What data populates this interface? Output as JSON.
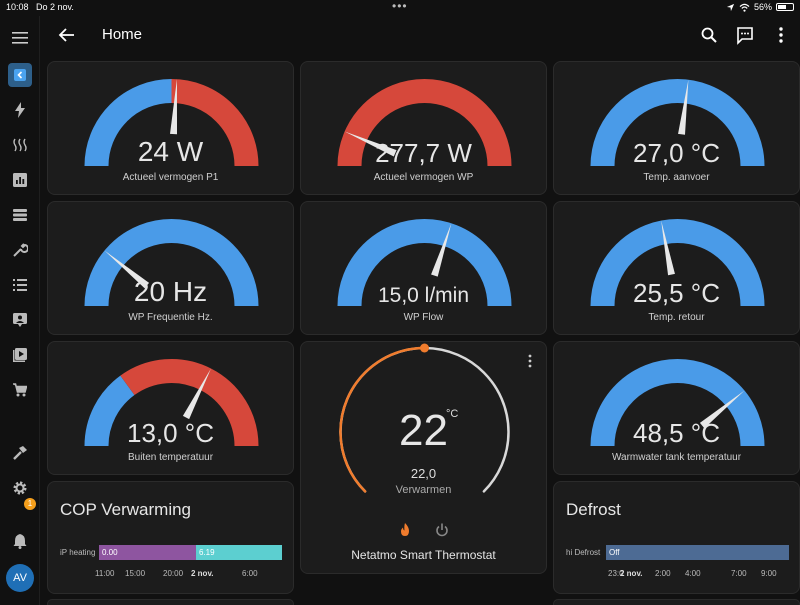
{
  "status": {
    "time": "10:08",
    "date": "Do 2 nov.",
    "battery": "56%"
  },
  "header": {
    "title": "Home"
  },
  "sidebar": {
    "badge_count": "1",
    "avatar_initials": "AV"
  },
  "colors": {
    "blue": "#4a9be8",
    "red": "#d6483b",
    "orange": "#f07c2d",
    "purple": "#8e55a0",
    "teal": "#5ccfd0",
    "slate": "#4d6b94"
  },
  "gauges": [
    {
      "value": "24 W",
      "name": "Actueel vermogen P1",
      "needle_fraction": 0.52,
      "blue_fraction": 0.5
    },
    {
      "value": "277,7 W",
      "name": "Actueel vermogen WP",
      "needle_fraction": 0.13,
      "blue_fraction": 0
    },
    {
      "value": "27,0 °C",
      "name": "Temp. aanvoer",
      "needle_fraction": 0.54,
      "blue_fraction": 1
    },
    {
      "value": "20 Hz",
      "name": "WP Frequentie Hz.",
      "needle_fraction": 0.22,
      "blue_fraction": 1
    },
    {
      "value": "15,0 l/min",
      "name": "WP Flow",
      "needle_fraction": 0.6,
      "blue_fraction": 1
    },
    {
      "value": "25,5 °C",
      "name": "Temp. retour",
      "needle_fraction": 0.44,
      "blue_fraction": 1
    },
    {
      "value": "13,0 °C",
      "name": "Buiten temperatuur",
      "needle_fraction": 0.65,
      "blue_fraction": 0.3
    },
    {
      "value": "48,5 °C",
      "name": "Warmwater tank temperatuur",
      "needle_fraction": 0.78,
      "blue_fraction": 1
    }
  ],
  "thermostat": {
    "target": "22",
    "unit": "°C",
    "current": "22,0",
    "mode": "Verwarmen",
    "name": "Netatmo Smart Thermostat",
    "position_fraction": 0.5
  },
  "cop": {
    "title": "COP Verwarming",
    "row_label": "iP heating",
    "segments": [
      {
        "label": "0.00",
        "fraction": 0.53
      },
      {
        "label": "6.19",
        "fraction": 0.47
      }
    ],
    "ticks": [
      "11:00",
      "15:00",
      "20:00",
      "2 nov.",
      "6:00"
    ]
  },
  "defrost": {
    "title": "Defrost",
    "row_label": "hi Defrost",
    "segments": [
      {
        "label": "Off",
        "fraction": 1
      }
    ],
    "ticks": [
      "23:0",
      "2 nov.",
      "2:00",
      "4:00",
      "7:00",
      "9:00"
    ]
  }
}
